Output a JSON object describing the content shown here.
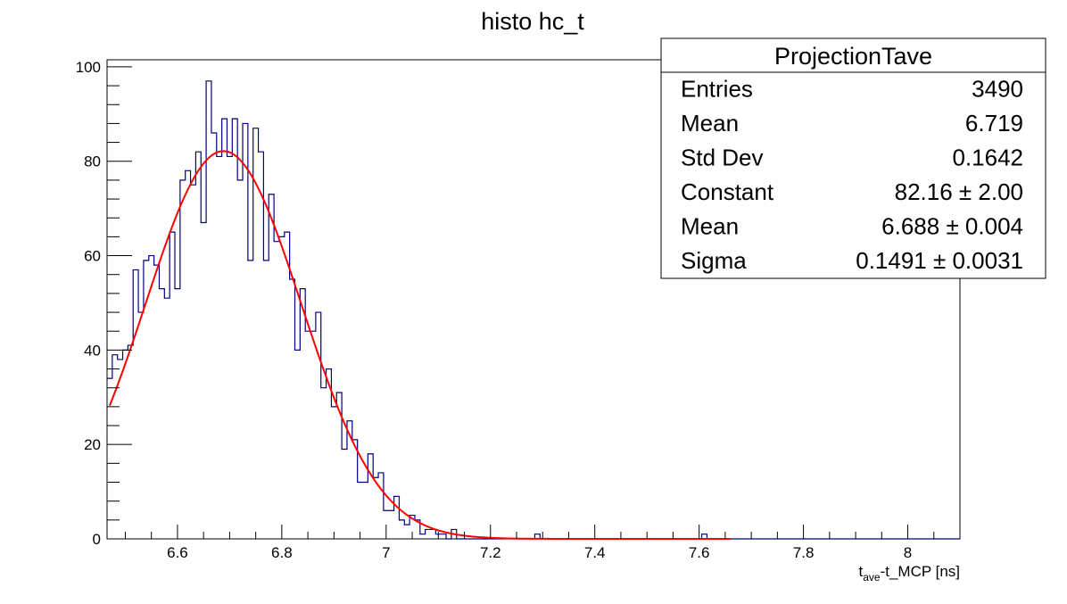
{
  "chart_data": {
    "type": "histogram",
    "title": "histo hc_t",
    "xlabel": {
      "base": "t",
      "subscript": "ave",
      "rest": "-t_MCP [ns]"
    },
    "ylabel": "",
    "xlim": [
      6.465,
      8.1
    ],
    "ylim": [
      0,
      101.5
    ],
    "x_ticks": [
      6.6,
      6.8,
      7.0,
      7.2,
      7.4,
      7.6,
      7.8,
      8.0
    ],
    "x_tick_labels": [
      "6.6",
      "6.8",
      "7",
      "7.2",
      "7.4",
      "7.6",
      "7.8",
      "8"
    ],
    "y_ticks": [
      0,
      20,
      40,
      60,
      80,
      100
    ],
    "y_tick_labels": [
      "0",
      "20",
      "40",
      "60",
      "80",
      "100"
    ],
    "grid": false,
    "bin_start": 6.465,
    "bin_width": 0.01,
    "series": [
      {
        "color": "#000080",
        "values": [
          34,
          39,
          38,
          40,
          41,
          57,
          48,
          59,
          60,
          58,
          53,
          51,
          65,
          53,
          76,
          78,
          75,
          82,
          67,
          97,
          86,
          81,
          89,
          81,
          89,
          76,
          88,
          59,
          87,
          82,
          59,
          73,
          63,
          64,
          65,
          55,
          40,
          53,
          44,
          44,
          48,
          32,
          36,
          28,
          31,
          19,
          25,
          21,
          12,
          12,
          18,
          13,
          14,
          6,
          6,
          9,
          4,
          3,
          5,
          4,
          1,
          2,
          2,
          1,
          1,
          0,
          2,
          0,
          0,
          0,
          0,
          0,
          0,
          0,
          0,
          0,
          0,
          0,
          0,
          0,
          0,
          0,
          1,
          0,
          0,
          0,
          0,
          0,
          0,
          0,
          0,
          0,
          0,
          0,
          0,
          0,
          0,
          0,
          0,
          0,
          0,
          0,
          0,
          0,
          0,
          0,
          0,
          0,
          0,
          0,
          0,
          0,
          0,
          0,
          1,
          0,
          0,
          0,
          0,
          0,
          0,
          0,
          0,
          0,
          0,
          0,
          0,
          0,
          0,
          0,
          0,
          0,
          0,
          0,
          0,
          0,
          0,
          0,
          0,
          0,
          0,
          0,
          0,
          0,
          0,
          0,
          0,
          0,
          0,
          0,
          0,
          0,
          0,
          0,
          0,
          0,
          0,
          0,
          0,
          0,
          0,
          0,
          0,
          0,
          0,
          0,
          0,
          0
        ]
      },
      {
        "type": "gaussian-fit",
        "color": "#ff0000",
        "constant": 82.16,
        "mean": 6.688,
        "sigma": 0.1491,
        "x_range": [
          6.47,
          7.66
        ]
      }
    ],
    "stats_box": {
      "title": "ProjectionTave",
      "rows": [
        {
          "label": "Entries",
          "value": "3490"
        },
        {
          "label": "Mean",
          "value": "6.719"
        },
        {
          "label": "Std Dev",
          "value": "0.1642"
        },
        {
          "label": "Constant",
          "value": "82.16 ± 2.00"
        },
        {
          "label": "Mean",
          "value": "6.688 ± 0.004"
        },
        {
          "label": "Sigma",
          "value": "0.1491 ± 0.0031"
        }
      ]
    }
  }
}
